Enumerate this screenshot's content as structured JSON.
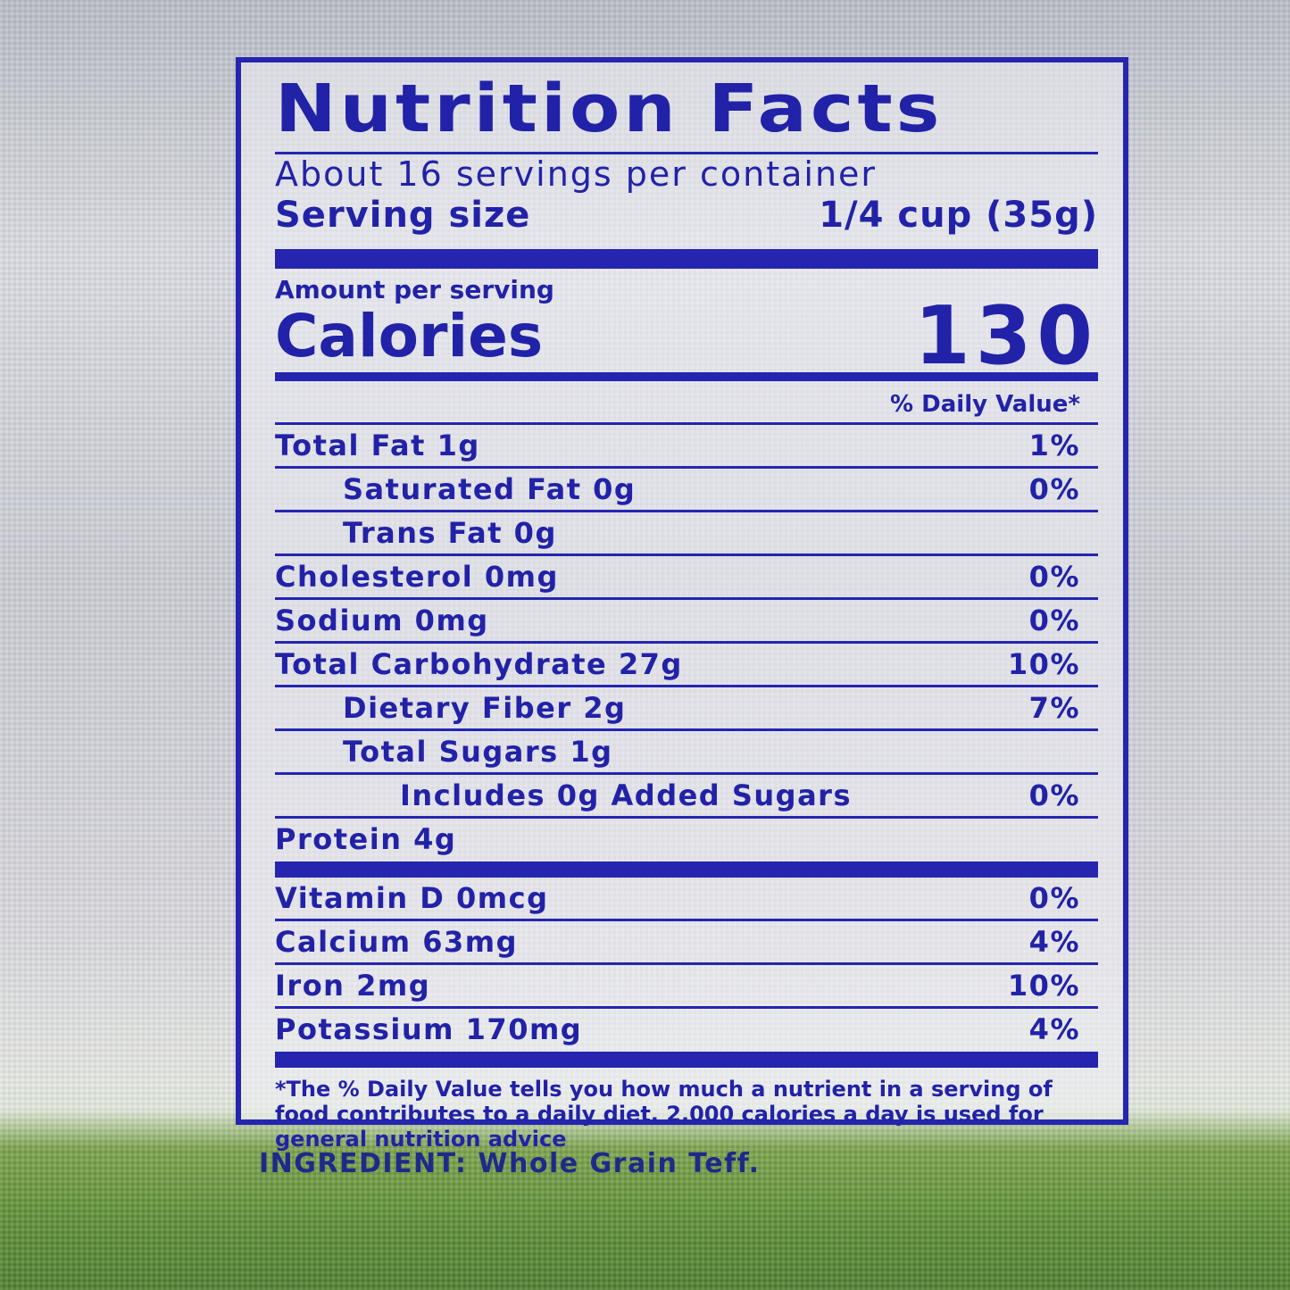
{
  "label": {
    "title": "Nutrition Facts",
    "servings": "About 16 servings per container",
    "serving_size_label": "Serving size",
    "serving_size_value": "1/4 cup (35g)",
    "amount_per_serving": "Amount per serving",
    "calories_label": "Calories",
    "calories_value": "130",
    "dv_header": "% Daily Value*",
    "nutrients": [
      {
        "name": "Total Fat 1g",
        "dv": "1%",
        "indent": 0
      },
      {
        "name": "Saturated Fat 0g",
        "dv": "0%",
        "indent": 1
      },
      {
        "name": "Trans Fat 0g",
        "dv": "",
        "indent": 1
      },
      {
        "name": "Cholesterol 0mg",
        "dv": "0%",
        "indent": 0
      },
      {
        "name": "Sodium 0mg",
        "dv": "0%",
        "indent": 0
      },
      {
        "name": "Total Carbohydrate 27g",
        "dv": "10%",
        "indent": 0
      },
      {
        "name": "Dietary Fiber 2g",
        "dv": "7%",
        "indent": 1
      },
      {
        "name": "Total Sugars 1g",
        "dv": "",
        "indent": 1
      },
      {
        "name": "Includes 0g Added Sugars",
        "dv": "0%",
        "indent": 2
      },
      {
        "name": "Protein 4g",
        "dv": "",
        "indent": 0
      }
    ],
    "vitamins": [
      {
        "name": "Vitamin D 0mcg",
        "dv": "0%"
      },
      {
        "name": "Calcium 63mg",
        "dv": "4%"
      },
      {
        "name": "Iron 2mg",
        "dv": "10%"
      },
      {
        "name": "Potassium 170mg",
        "dv": "4%"
      }
    ],
    "footnote": "*The % Daily Value tells you how much a nutrient in a serving of food contributes to a daily diet. 2,000 calories a day is used for general nutrition advice"
  },
  "ingredients": "INGREDIENT: Whole Grain Teff.",
  "colors": {
    "ink": "#2525b0",
    "grass": "#5f8f37"
  }
}
